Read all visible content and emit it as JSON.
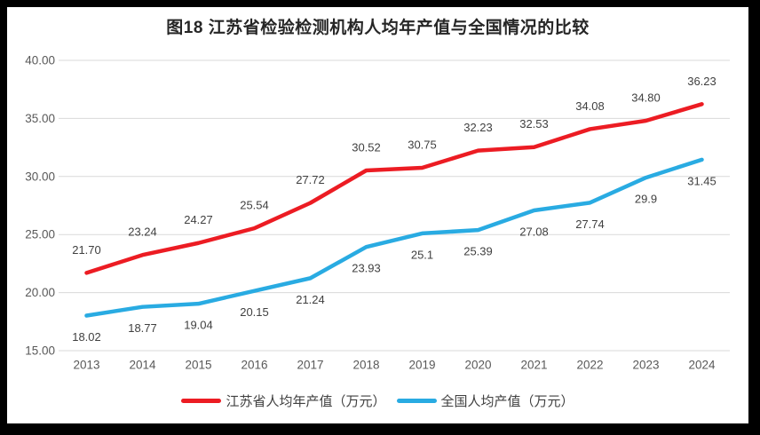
{
  "title": "图18  江苏省检验检测机构人均年产值与全国情况的比较",
  "chart_data": {
    "type": "line",
    "title": "图18  江苏省检验检测机构人均年产值与全国情况的比较",
    "categories": [
      "2013",
      "2014",
      "2015",
      "2016",
      "2017",
      "2018",
      "2019",
      "2020",
      "2021",
      "2022",
      "2023",
      "2024"
    ],
    "series": [
      {
        "name": "江苏省人均年产值（万元）",
        "color": "#ec1c23",
        "values": [
          21.7,
          23.24,
          24.27,
          25.54,
          27.72,
          30.52,
          30.75,
          32.23,
          32.53,
          34.08,
          34.8,
          36.23
        ],
        "labels": [
          "21.70",
          "23.24",
          "24.27",
          "25.54",
          "27.72",
          "30.52",
          "30.75",
          "32.23",
          "32.53",
          "34.08",
          "34.80",
          "36.23"
        ],
        "label_position": "above"
      },
      {
        "name": "全国人均产值（万元）",
        "color": "#29abe2",
        "values": [
          18.02,
          18.77,
          19.04,
          20.15,
          21.24,
          23.93,
          25.1,
          25.39,
          27.08,
          27.74,
          29.9,
          31.45
        ],
        "labels": [
          "18.02",
          "18.77",
          "19.04",
          "20.15",
          "21.24",
          "23.93",
          "25.1",
          "25.39",
          "27.08",
          "27.74",
          "29.9",
          "31.45"
        ],
        "label_position": "below"
      }
    ],
    "ylim": [
      15,
      40
    ],
    "yticks": [
      {
        "value": 40,
        "label": "40.00"
      },
      {
        "value": 35,
        "label": "35.00"
      },
      {
        "value": 30,
        "label": "30.00"
      },
      {
        "value": 25,
        "label": "25.00"
      },
      {
        "value": 20,
        "label": "20.00"
      },
      {
        "value": 15,
        "label": "15.00"
      }
    ],
    "grid": true,
    "legend_position": "bottom"
  },
  "colors": {
    "grid": "#d9d9d9",
    "axis_text": "#595959",
    "label_text": "#404040",
    "title_text": "#262626",
    "frame": "#000000",
    "background": "#ffffff"
  }
}
